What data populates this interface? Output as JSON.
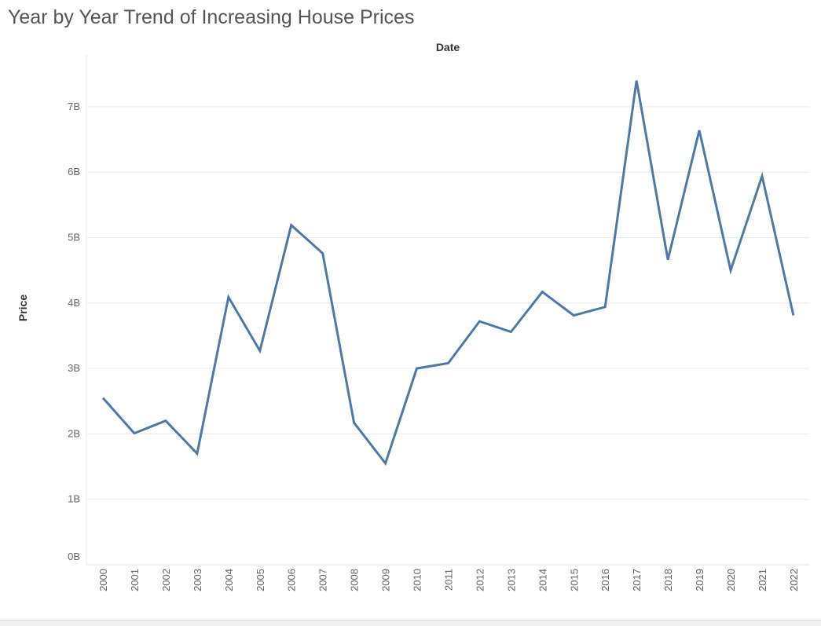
{
  "chart_data": {
    "type": "line",
    "title": "Year by Year Trend of Increasing House Prices",
    "column_header": "Date",
    "ylabel": "Price",
    "y_ticks": [
      "0B",
      "1B",
      "2B",
      "3B",
      "4B",
      "5B",
      "6B",
      "7B"
    ],
    "ylim": [
      0,
      8.1
    ],
    "y_unit": "billions",
    "grid": true,
    "series": [
      {
        "values": [
          2.55,
          2.01,
          2.2,
          1.7,
          4.09,
          3.27,
          5.19,
          4.76,
          2.17,
          1.55,
          3.0,
          3.08,
          3.72,
          3.56,
          4.17,
          3.81,
          3.94,
          7.4,
          4.66,
          6.64,
          4.5,
          5.94,
          3.81
        ],
        "color": "#4e79a7"
      }
    ],
    "categories": [
      "2000",
      "2001",
      "2002",
      "2003",
      "2004",
      "2005",
      "2006",
      "2007",
      "2008",
      "2009",
      "2010",
      "2011",
      "2012",
      "2013",
      "2014",
      "2015",
      "2016",
      "2017",
      "2018",
      "2019",
      "2020",
      "2021",
      "2022"
    ]
  },
  "colors": {
    "line": "#4e79a7",
    "grid": "#ececec",
    "axis_text": "#666666"
  }
}
